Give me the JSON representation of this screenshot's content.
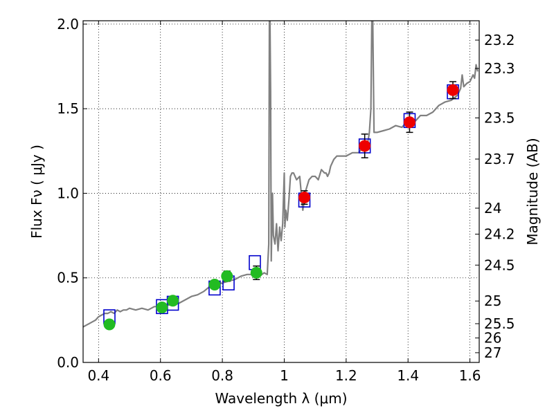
{
  "chart_data": {
    "type": "scatter",
    "xlabel": "Wavelength  λ (μm)",
    "ylabel": "Flux  Fν  ( μJy )",
    "y2label": "Magnitude (AB)",
    "xlim": [
      0.35,
      1.63
    ],
    "ylim": [
      0.0,
      2.02
    ],
    "grid": true,
    "x_ticks": [
      {
        "v": 0.4,
        "label": "0.4"
      },
      {
        "v": 0.6,
        "label": "0.6"
      },
      {
        "v": 0.8,
        "label": "0.8"
      },
      {
        "v": 1.0,
        "label": "1"
      },
      {
        "v": 1.2,
        "label": "1.2"
      },
      {
        "v": 1.4,
        "label": "1.4"
      },
      {
        "v": 1.6,
        "label": "1.6"
      }
    ],
    "y_ticks": [
      {
        "v": 0.0,
        "label": "0.0"
      },
      {
        "v": 0.5,
        "label": "0.5"
      },
      {
        "v": 1.0,
        "label": "1.0"
      },
      {
        "v": 1.5,
        "label": "1.5"
      },
      {
        "v": 2.0,
        "label": "2.0"
      }
    ],
    "mag_ticks": [
      {
        "v": 23.2,
        "label": "23.2"
      },
      {
        "v": 23.3,
        "label": "23.3"
      },
      {
        "v": 23.5,
        "label": "23.5"
      },
      {
        "v": 23.7,
        "label": "23.7"
      },
      {
        "v": 24,
        "label": "24"
      },
      {
        "v": 24.2,
        "label": "24.2"
      },
      {
        "v": 24.5,
        "label": "24.5"
      },
      {
        "v": 25,
        "label": "25"
      },
      {
        "v": 25.5,
        "label": "25.5"
      },
      {
        "v": 26,
        "label": "26"
      },
      {
        "v": 27,
        "label": "27"
      }
    ],
    "colors": {
      "model": "#808080",
      "model_box": "#0000cc",
      "optical": "#22bb22",
      "infrared": "#ee0000",
      "errorbar": "#000000"
    },
    "model_spectrum": {
      "x": [
        0.35,
        0.36,
        0.37,
        0.38,
        0.39,
        0.4,
        0.41,
        0.42,
        0.43,
        0.44,
        0.45,
        0.46,
        0.47,
        0.48,
        0.49,
        0.5,
        0.52,
        0.54,
        0.56,
        0.58,
        0.6,
        0.62,
        0.64,
        0.66,
        0.68,
        0.7,
        0.72,
        0.74,
        0.76,
        0.78,
        0.8,
        0.82,
        0.84,
        0.86,
        0.88,
        0.9,
        0.92,
        0.935,
        0.945,
        0.95,
        0.952,
        0.954,
        0.956,
        0.958,
        0.96,
        0.962,
        0.965,
        0.97,
        0.975,
        0.98,
        0.985,
        0.99,
        0.995,
        1.0,
        1.002,
        1.005,
        1.01,
        1.015,
        1.02,
        1.025,
        1.03,
        1.04,
        1.05,
        1.06,
        1.07,
        1.08,
        1.09,
        1.1,
        1.11,
        1.12,
        1.13,
        1.135,
        1.14,
        1.145,
        1.15,
        1.16,
        1.17,
        1.18,
        1.2,
        1.22,
        1.24,
        1.26,
        1.27,
        1.275,
        1.28,
        1.283,
        1.286,
        1.29,
        1.3,
        1.32,
        1.34,
        1.36,
        1.38,
        1.4,
        1.42,
        1.44,
        1.46,
        1.48,
        1.5,
        1.52,
        1.54,
        1.56,
        1.57,
        1.575,
        1.58,
        1.59,
        1.6,
        1.61,
        1.615,
        1.62,
        1.625
      ],
      "y": [
        0.21,
        0.22,
        0.23,
        0.24,
        0.25,
        0.27,
        0.28,
        0.29,
        0.29,
        0.3,
        0.29,
        0.31,
        0.3,
        0.31,
        0.31,
        0.32,
        0.31,
        0.32,
        0.31,
        0.33,
        0.33,
        0.34,
        0.34,
        0.35,
        0.37,
        0.39,
        0.4,
        0.42,
        0.45,
        0.46,
        0.47,
        0.48,
        0.49,
        0.51,
        0.52,
        0.52,
        0.51,
        0.53,
        0.52,
        0.7,
        2.02,
        2.02,
        1.6,
        0.6,
        0.8,
        1.0,
        0.75,
        0.7,
        0.82,
        0.66,
        0.8,
        0.72,
        0.82,
        1.12,
        0.8,
        0.9,
        0.84,
        0.96,
        1.1,
        1.12,
        1.12,
        1.08,
        1.1,
        0.9,
        1.02,
        1.08,
        1.1,
        1.1,
        1.08,
        1.14,
        1.12,
        1.12,
        1.1,
        1.12,
        1.16,
        1.2,
        1.22,
        1.22,
        1.22,
        1.24,
        1.24,
        1.28,
        1.3,
        1.36,
        1.5,
        2.02,
        2.02,
        1.36,
        1.36,
        1.37,
        1.38,
        1.4,
        1.39,
        1.43,
        1.42,
        1.46,
        1.46,
        1.48,
        1.52,
        1.54,
        1.55,
        1.58,
        1.62,
        1.7,
        1.63,
        1.65,
        1.66,
        1.7,
        1.68,
        1.76,
        1.72
      ]
    },
    "model_photometry": [
      {
        "x": 0.435,
        "y": 0.27
      },
      {
        "x": 0.605,
        "y": 0.33
      },
      {
        "x": 0.64,
        "y": 0.35
      },
      {
        "x": 0.775,
        "y": 0.44
      },
      {
        "x": 0.82,
        "y": 0.47
      },
      {
        "x": 0.905,
        "y": 0.59
      },
      {
        "x": 1.065,
        "y": 0.96
      },
      {
        "x": 1.26,
        "y": 1.28
      },
      {
        "x": 1.405,
        "y": 1.43
      },
      {
        "x": 1.545,
        "y": 1.6
      }
    ],
    "observed_optical": [
      {
        "x": 0.435,
        "y": 0.225,
        "err": 0.02
      },
      {
        "x": 0.605,
        "y": 0.325,
        "err": 0.02
      },
      {
        "x": 0.64,
        "y": 0.365,
        "err": 0.02
      },
      {
        "x": 0.775,
        "y": 0.46,
        "err": 0.02
      },
      {
        "x": 0.815,
        "y": 0.51,
        "err": 0.03
      },
      {
        "x": 0.91,
        "y": 0.53,
        "err": 0.04
      }
    ],
    "observed_infrared": [
      {
        "x": 1.065,
        "y": 0.975,
        "err": 0.04
      },
      {
        "x": 1.26,
        "y": 1.28,
        "err": 0.07
      },
      {
        "x": 1.405,
        "y": 1.42,
        "err": 0.06
      },
      {
        "x": 1.545,
        "y": 1.61,
        "err": 0.05
      }
    ]
  }
}
